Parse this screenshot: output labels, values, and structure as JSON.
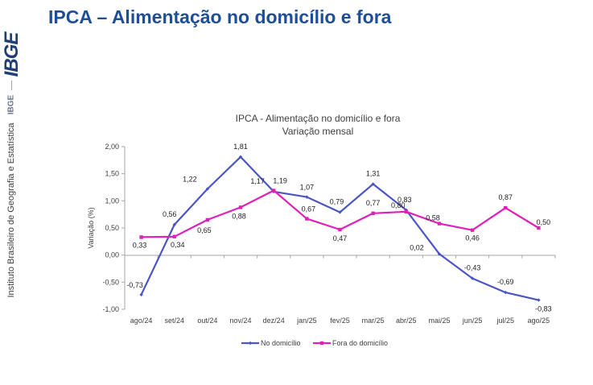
{
  "slide": {
    "title": "IPCA – Alimentação no domicílio e fora"
  },
  "sidebar": {
    "logo_text": "IBGE",
    "abbrev": "IBGE",
    "institution": "Instituto Brasileiro de Geografia e Estatística"
  },
  "colors": {
    "title": "#1f4e99",
    "series_no_domicilio": "#4a56c8",
    "series_fora_domicilio": "#e020b8"
  },
  "chart_data": {
    "type": "line",
    "title": "IPCA - Alimentação no domicílio e fora",
    "subtitle": "Variação mensal",
    "xlabel": "",
    "ylabel": "Variação (%)",
    "ylim": [
      -1.0,
      2.0
    ],
    "yticks": [
      "2,00",
      "1,50",
      "1,00",
      "0,50",
      "0,00",
      "-0,50",
      "-1,00"
    ],
    "ytick_values": [
      2.0,
      1.5,
      1.0,
      0.5,
      0.0,
      -0.5,
      -1.0
    ],
    "grid": false,
    "legend_position": "bottom",
    "categories": [
      "ago/24",
      "set/24",
      "out/24",
      "nov/24",
      "dez/24",
      "jan/25",
      "fev/25",
      "mar/25",
      "abr/25",
      "mai/25",
      "jun/25",
      "jul/25",
      "ago/25"
    ],
    "series": [
      {
        "name": "No domicílio",
        "color": "#4a56c8",
        "values": [
          -0.73,
          0.56,
          1.22,
          1.81,
          1.17,
          1.07,
          0.79,
          1.31,
          0.83,
          0.02,
          -0.43,
          -0.69,
          -0.83
        ],
        "labels": [
          "-0,73",
          "0,56",
          "1,22",
          "1,81",
          "1,17",
          "1,07",
          "0,79",
          "1,31",
          "0,83",
          "0,02",
          "-0,43",
          "-0,69",
          "-0,83"
        ]
      },
      {
        "name": "Fora do domicílio",
        "color": "#e020b8",
        "values": [
          0.33,
          0.34,
          0.65,
          0.88,
          1.19,
          0.67,
          0.47,
          0.77,
          0.8,
          0.58,
          0.46,
          0.87,
          0.5
        ],
        "labels": [
          "0,33",
          "0,34",
          "0,65",
          "0,88",
          "1,19",
          "0,67",
          "0,47",
          "0,77",
          "0,80",
          "0,58",
          "0,46",
          "0,87",
          "0,50"
        ]
      }
    ]
  }
}
